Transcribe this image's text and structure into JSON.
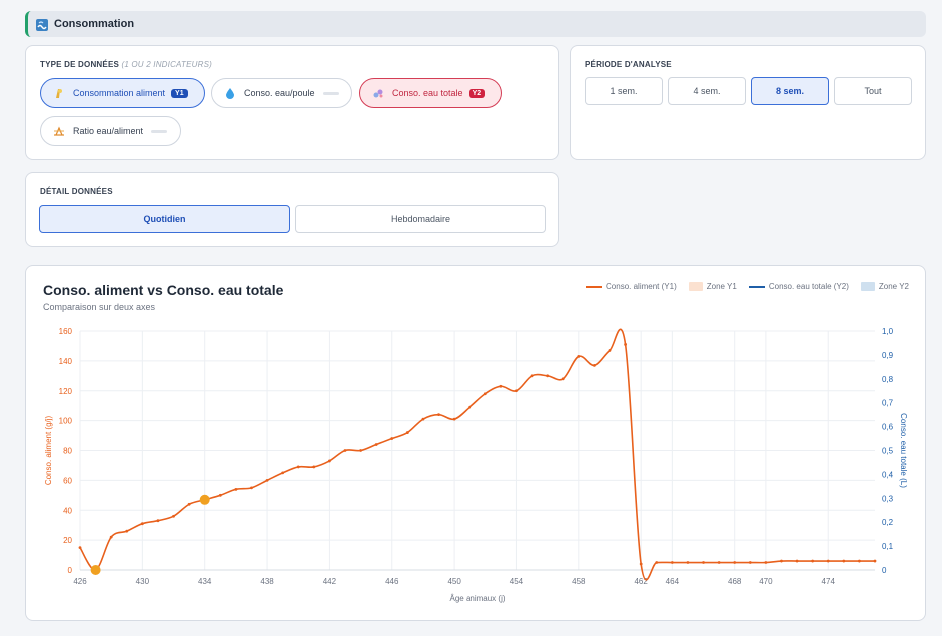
{
  "header": {
    "title": "Consommation",
    "icon": "water-wave-icon",
    "accent": "#22a06b"
  },
  "data_type": {
    "title": "TYPE DE DONNÉES",
    "subtitle": "(1 OU 2 INDICATEURS)",
    "options": [
      {
        "label": "Consommation aliment",
        "icon": "feed-icon",
        "badge": "Y1",
        "state": "active-y1"
      },
      {
        "label": "Conso. eau/poule",
        "icon": "water-drop-icon",
        "badge": "",
        "state": "inactive"
      },
      {
        "label": "Conso. eau totale",
        "icon": "water-total-icon",
        "badge": "Y2",
        "state": "active-y2"
      },
      {
        "label": "Ratio eau/aliment",
        "icon": "ratio-icon",
        "badge": "",
        "state": "inactive"
      }
    ]
  },
  "period": {
    "title": "PÉRIODE D'ANALYSE",
    "options": [
      "1 sem.",
      "4 sem.",
      "8 sem.",
      "Tout"
    ],
    "selected": "8 sem."
  },
  "detail": {
    "title": "DÉTAIL DONNÉES",
    "options": [
      "Quotidien",
      "Hebdomadaire"
    ],
    "selected": "Quotidien"
  },
  "chart_header": {
    "title": "Conso. aliment vs Conso. eau totale",
    "subtitle": "Comparaison sur deux axes",
    "legend": [
      {
        "label": "Conso. aliment (Y1)",
        "kind": "line",
        "color": "#e8601c"
      },
      {
        "label": "Zone Y1",
        "kind": "box",
        "color": "#fbe1d0"
      },
      {
        "label": "Conso. eau totale (Y2)",
        "kind": "line",
        "color": "#1f5fa8"
      },
      {
        "label": "Zone Y2",
        "kind": "box",
        "color": "#cfe0ef"
      }
    ]
  },
  "chart_data": {
    "type": "line",
    "xlabel": "Âge animaux (j)",
    "ylabel": "Conso. aliment (g/j)",
    "y2label": "Conso. eau totale (L)",
    "xlim": [
      426,
      477
    ],
    "ylim": [
      0,
      160
    ],
    "y2lim": [
      0,
      1.0
    ],
    "x_ticks": [
      426,
      430,
      434,
      438,
      442,
      446,
      450,
      454,
      458,
      462,
      464,
      468,
      470,
      474
    ],
    "y_ticks": [
      0,
      20,
      40,
      60,
      80,
      100,
      120,
      140,
      160
    ],
    "y2_ticks": [
      "0",
      "0,1",
      "0,2",
      "0,3",
      "0,4",
      "0,5",
      "0,6",
      "0,7",
      "0,8",
      "0,9",
      "1,0"
    ],
    "grid": true,
    "series": [
      {
        "name": "Conso. aliment (Y1)",
        "axis": "y1",
        "color": "#e8601c",
        "x": [
          426,
          427,
          428,
          429,
          430,
          431,
          432,
          433,
          434,
          435,
          436,
          437,
          438,
          439,
          440,
          441,
          442,
          443,
          444,
          445,
          446,
          447,
          448,
          449,
          450,
          451,
          452,
          453,
          454,
          455,
          456,
          457,
          458,
          459,
          460,
          461,
          462,
          463,
          464,
          465,
          466,
          467,
          468,
          469,
          470,
          471,
          472,
          473,
          474,
          475,
          476,
          477
        ],
        "values": [
          15,
          0,
          22,
          26,
          31,
          33,
          36,
          44,
          47,
          50,
          54,
          55,
          60,
          65,
          69,
          69,
          73,
          80,
          80,
          84,
          88,
          92,
          101,
          104,
          101,
          109,
          118,
          123,
          120,
          130,
          130,
          128,
          143,
          137,
          147,
          151,
          4,
          5,
          5,
          5,
          5,
          5,
          5,
          5,
          5,
          6,
          6,
          6,
          6,
          6,
          6,
          6
        ],
        "highlight_x": [
          427,
          434
        ]
      }
    ]
  }
}
